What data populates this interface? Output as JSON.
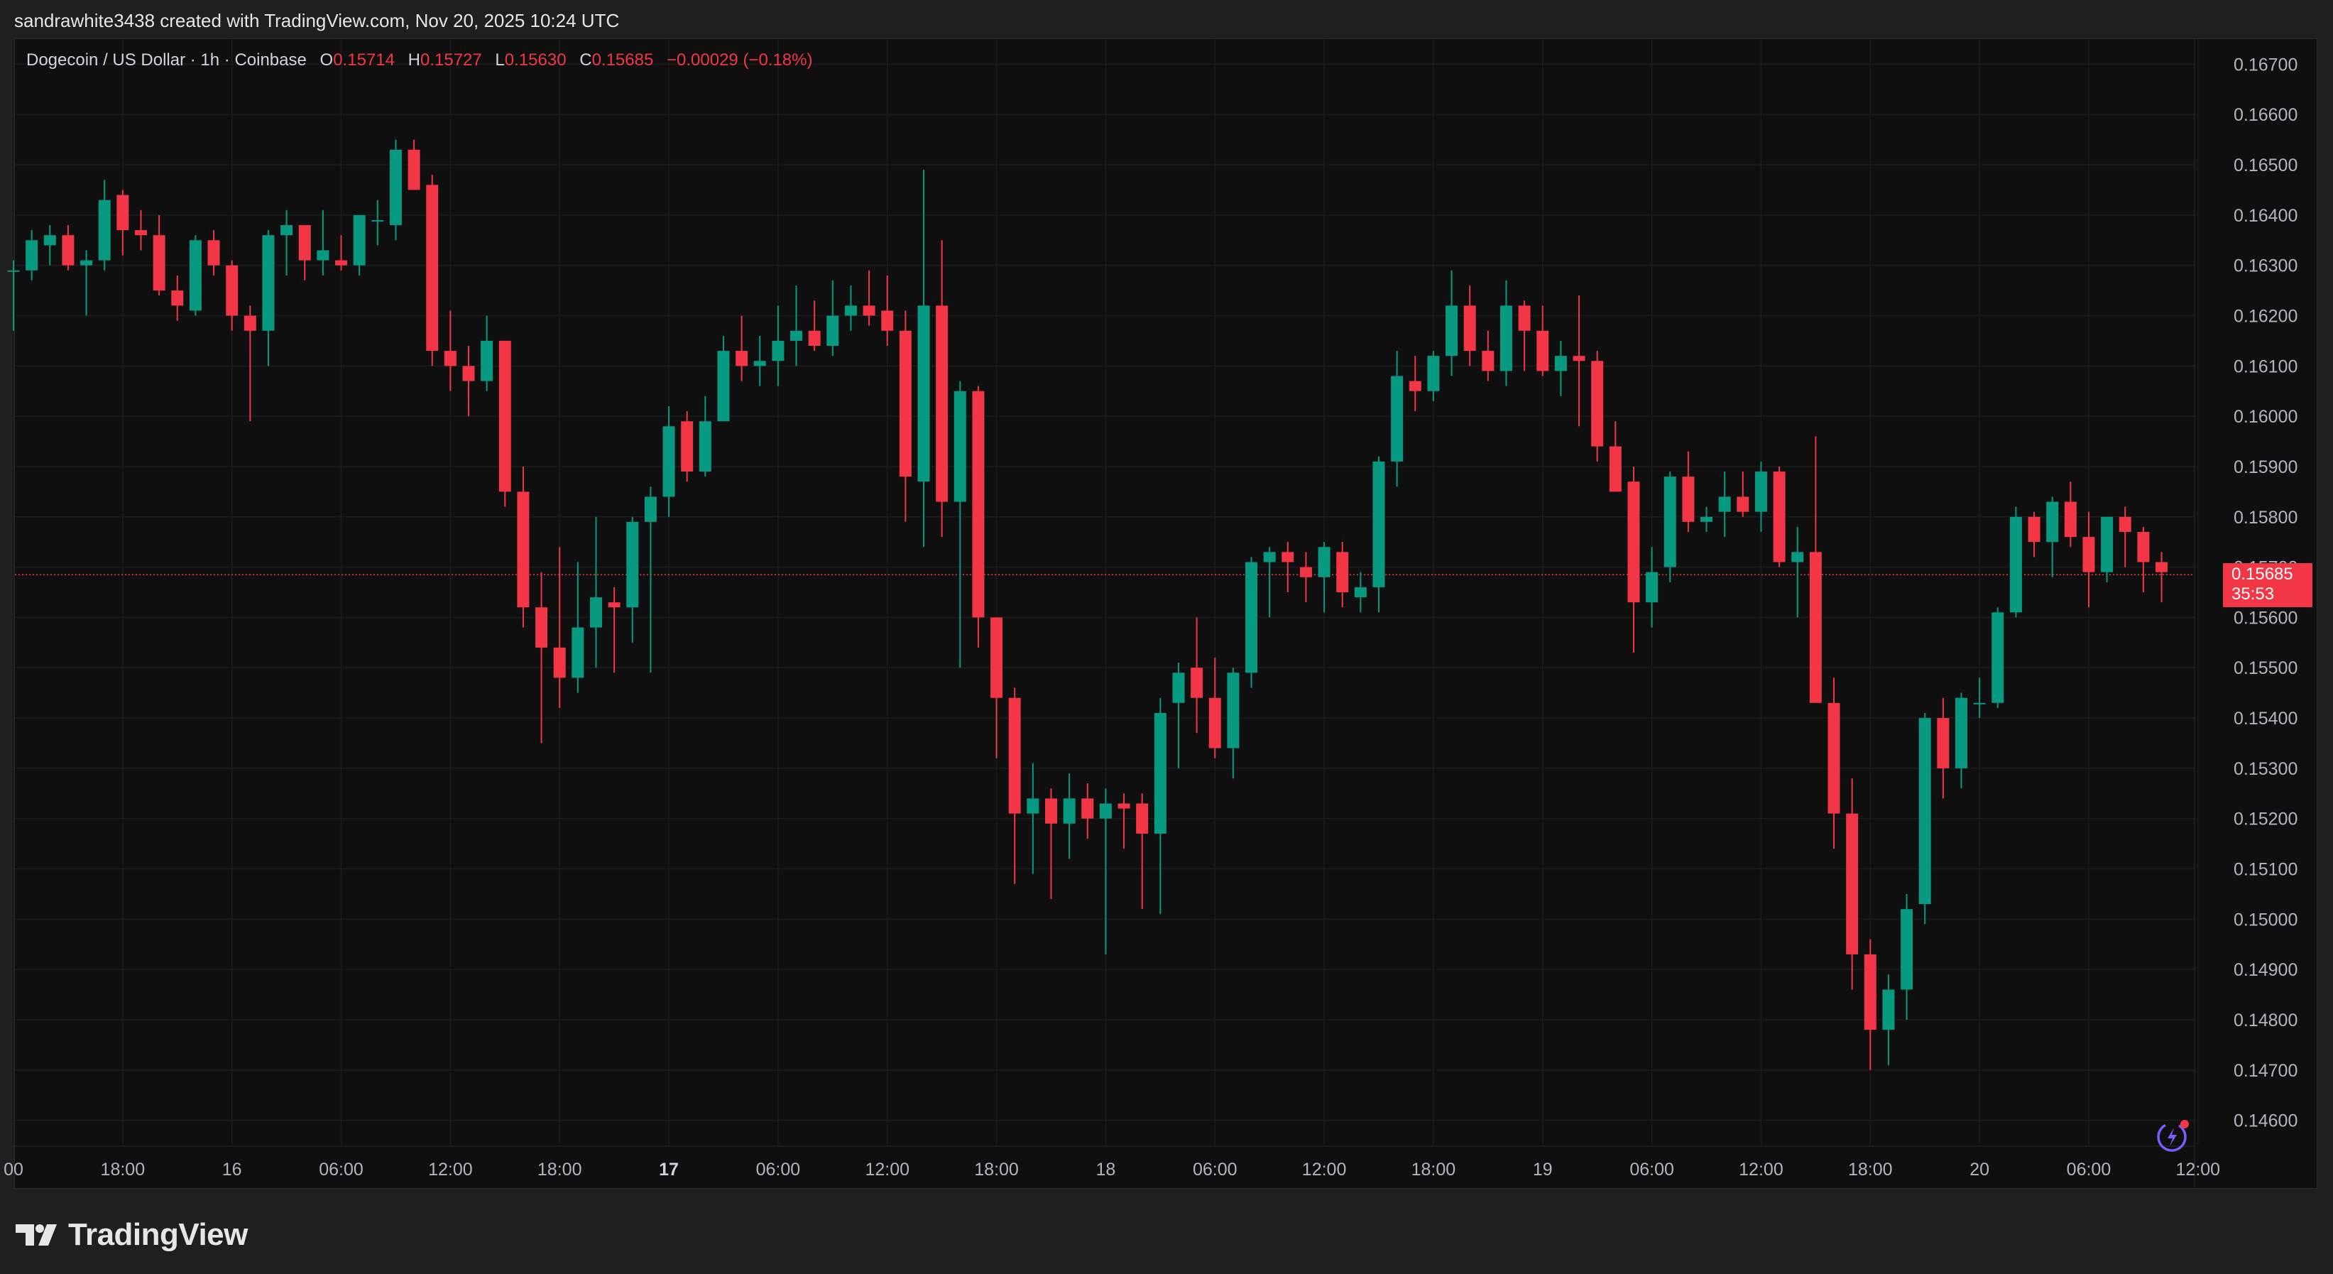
{
  "attribution": "sandrawhite3438 created with TradingView.com, Nov 20, 2025 10:24 UTC",
  "legend": {
    "symbol": "Dogecoin / US Dollar · 1h · Coinbase",
    "o_label": "O",
    "o_value": "0.15714",
    "h_label": "H",
    "h_value": "0.15727",
    "l_label": "L",
    "l_value": "0.15630",
    "c_label": "C",
    "c_value": "0.15685",
    "change": "−0.00029 (−0.18%)"
  },
  "last_price_label": "0.15685",
  "countdown": "35:53",
  "brand": "TradingView",
  "icons": {
    "brand_logo": "tradingview-logo-icon",
    "assistant": "sparkle-assistant-icon"
  },
  "colors": {
    "up": "#089981",
    "down": "#f23645",
    "background": "#0f0f0f",
    "grid": "#1c1c1c"
  },
  "chart_data": {
    "type": "candlestick",
    "interval": "1h",
    "ylim": [
      0.1455,
      0.1675
    ],
    "grid": true,
    "y_ticks": [
      "0.16700",
      "0.16600",
      "0.16500",
      "0.16400",
      "0.16300",
      "0.16200",
      "0.16100",
      "0.16000",
      "0.15900",
      "0.15800",
      "0.15700",
      "0.15600",
      "0.15500",
      "0.15400",
      "0.15300",
      "0.15200",
      "0.15100",
      "0.15000",
      "0.14900",
      "0.14800",
      "0.14700",
      "0.14600"
    ],
    "x_ticks": [
      {
        "label": "00",
        "index": 0,
        "bold": false
      },
      {
        "label": "18:00",
        "index": 6,
        "bold": false
      },
      {
        "label": "16",
        "index": 12,
        "bold": false
      },
      {
        "label": "06:00",
        "index": 18,
        "bold": false
      },
      {
        "label": "12:00",
        "index": 24,
        "bold": false
      },
      {
        "label": "18:00",
        "index": 30,
        "bold": false
      },
      {
        "label": "17",
        "index": 36,
        "bold": true
      },
      {
        "label": "06:00",
        "index": 42,
        "bold": false
      },
      {
        "label": "12:00",
        "index": 48,
        "bold": false
      },
      {
        "label": "18:00",
        "index": 54,
        "bold": false
      },
      {
        "label": "18",
        "index": 60,
        "bold": false
      },
      {
        "label": "06:00",
        "index": 66,
        "bold": false
      },
      {
        "label": "12:00",
        "index": 72,
        "bold": false
      },
      {
        "label": "18:00",
        "index": 78,
        "bold": false
      },
      {
        "label": "19",
        "index": 84,
        "bold": false
      },
      {
        "label": "06:00",
        "index": 90,
        "bold": false
      },
      {
        "label": "12:00",
        "index": 96,
        "bold": false
      },
      {
        "label": "18:00",
        "index": 102,
        "bold": false
      },
      {
        "label": "20",
        "index": 108,
        "bold": false
      },
      {
        "label": "06:00",
        "index": 114,
        "bold": false
      },
      {
        "label": "12:00",
        "index": 120,
        "bold": false
      }
    ],
    "last_price": 0.15685,
    "candles": [
      {
        "o": 0.1629,
        "h": 0.1631,
        "l": 0.1617,
        "c": 0.1629
      },
      {
        "o": 0.1629,
        "h": 0.1637,
        "l": 0.1627,
        "c": 0.1635
      },
      {
        "o": 0.1634,
        "h": 0.1638,
        "l": 0.163,
        "c": 0.1636
      },
      {
        "o": 0.1636,
        "h": 0.1638,
        "l": 0.1629,
        "c": 0.163
      },
      {
        "o": 0.163,
        "h": 0.1633,
        "l": 0.162,
        "c": 0.1631
      },
      {
        "o": 0.1631,
        "h": 0.1647,
        "l": 0.1629,
        "c": 0.1643
      },
      {
        "o": 0.1644,
        "h": 0.1645,
        "l": 0.1632,
        "c": 0.1637
      },
      {
        "o": 0.1637,
        "h": 0.1641,
        "l": 0.1633,
        "c": 0.1636
      },
      {
        "o": 0.1636,
        "h": 0.164,
        "l": 0.1624,
        "c": 0.1625
      },
      {
        "o": 0.1625,
        "h": 0.1628,
        "l": 0.1619,
        "c": 0.1622
      },
      {
        "o": 0.1621,
        "h": 0.1636,
        "l": 0.162,
        "c": 0.1635
      },
      {
        "o": 0.1635,
        "h": 0.1637,
        "l": 0.1628,
        "c": 0.163
      },
      {
        "o": 0.163,
        "h": 0.1631,
        "l": 0.1617,
        "c": 0.162
      },
      {
        "o": 0.162,
        "h": 0.1622,
        "l": 0.1599,
        "c": 0.1617
      },
      {
        "o": 0.1617,
        "h": 0.1637,
        "l": 0.161,
        "c": 0.1636
      },
      {
        "o": 0.1636,
        "h": 0.1641,
        "l": 0.1628,
        "c": 0.1638
      },
      {
        "o": 0.1638,
        "h": 0.1638,
        "l": 0.1627,
        "c": 0.1631
      },
      {
        "o": 0.1631,
        "h": 0.1641,
        "l": 0.1628,
        "c": 0.1633
      },
      {
        "o": 0.1631,
        "h": 0.1636,
        "l": 0.1629,
        "c": 0.163
      },
      {
        "o": 0.163,
        "h": 0.164,
        "l": 0.1628,
        "c": 0.164
      },
      {
        "o": 0.1639,
        "h": 0.1643,
        "l": 0.1634,
        "c": 0.1639
      },
      {
        "o": 0.1638,
        "h": 0.1655,
        "l": 0.1635,
        "c": 0.1653
      },
      {
        "o": 0.1653,
        "h": 0.1655,
        "l": 0.1645,
        "c": 0.1645
      },
      {
        "o": 0.1646,
        "h": 0.1648,
        "l": 0.161,
        "c": 0.1613
      },
      {
        "o": 0.1613,
        "h": 0.1621,
        "l": 0.1605,
        "c": 0.161
      },
      {
        "o": 0.161,
        "h": 0.1614,
        "l": 0.16,
        "c": 0.1607
      },
      {
        "o": 0.1607,
        "h": 0.162,
        "l": 0.1605,
        "c": 0.1615
      },
      {
        "o": 0.1615,
        "h": 0.1615,
        "l": 0.1582,
        "c": 0.1585
      },
      {
        "o": 0.1585,
        "h": 0.159,
        "l": 0.1558,
        "c": 0.1562
      },
      {
        "o": 0.1562,
        "h": 0.1569,
        "l": 0.1535,
        "c": 0.1554
      },
      {
        "o": 0.1554,
        "h": 0.1574,
        "l": 0.1542,
        "c": 0.1548
      },
      {
        "o": 0.1548,
        "h": 0.1571,
        "l": 0.1545,
        "c": 0.1558
      },
      {
        "o": 0.1558,
        "h": 0.158,
        "l": 0.155,
        "c": 0.1564
      },
      {
        "o": 0.1563,
        "h": 0.1566,
        "l": 0.1549,
        "c": 0.1562
      },
      {
        "o": 0.1562,
        "h": 0.158,
        "l": 0.1555,
        "c": 0.1579
      },
      {
        "o": 0.1579,
        "h": 0.1586,
        "l": 0.1549,
        "c": 0.1584
      },
      {
        "o": 0.1584,
        "h": 0.1602,
        "l": 0.158,
        "c": 0.1598
      },
      {
        "o": 0.1599,
        "h": 0.1601,
        "l": 0.1587,
        "c": 0.1589
      },
      {
        "o": 0.1589,
        "h": 0.1604,
        "l": 0.1588,
        "c": 0.1599
      },
      {
        "o": 0.1599,
        "h": 0.1616,
        "l": 0.1599,
        "c": 0.1613
      },
      {
        "o": 0.1613,
        "h": 0.162,
        "l": 0.1607,
        "c": 0.161
      },
      {
        "o": 0.161,
        "h": 0.1616,
        "l": 0.1606,
        "c": 0.1611
      },
      {
        "o": 0.1611,
        "h": 0.1622,
        "l": 0.1606,
        "c": 0.1615
      },
      {
        "o": 0.1615,
        "h": 0.1626,
        "l": 0.161,
        "c": 0.1617
      },
      {
        "o": 0.1617,
        "h": 0.1623,
        "l": 0.1613,
        "c": 0.1614
      },
      {
        "o": 0.1614,
        "h": 0.1627,
        "l": 0.1612,
        "c": 0.162
      },
      {
        "o": 0.162,
        "h": 0.1626,
        "l": 0.1617,
        "c": 0.1622
      },
      {
        "o": 0.1622,
        "h": 0.1629,
        "l": 0.1618,
        "c": 0.162
      },
      {
        "o": 0.1621,
        "h": 0.1628,
        "l": 0.1614,
        "c": 0.1617
      },
      {
        "o": 0.1617,
        "h": 0.1621,
        "l": 0.1579,
        "c": 0.1588
      },
      {
        "o": 0.1587,
        "h": 0.1649,
        "l": 0.1574,
        "c": 0.1622
      },
      {
        "o": 0.1622,
        "h": 0.1635,
        "l": 0.1576,
        "c": 0.1583
      },
      {
        "o": 0.1583,
        "h": 0.1607,
        "l": 0.155,
        "c": 0.1605
      },
      {
        "o": 0.1605,
        "h": 0.1606,
        "l": 0.1554,
        "c": 0.156
      },
      {
        "o": 0.156,
        "h": 0.156,
        "l": 0.1532,
        "c": 0.1544
      },
      {
        "o": 0.1544,
        "h": 0.1546,
        "l": 0.1507,
        "c": 0.1521
      },
      {
        "o": 0.1521,
        "h": 0.1531,
        "l": 0.1509,
        "c": 0.1524
      },
      {
        "o": 0.1524,
        "h": 0.1526,
        "l": 0.1504,
        "c": 0.1519
      },
      {
        "o": 0.1519,
        "h": 0.1529,
        "l": 0.1512,
        "c": 0.1524
      },
      {
        "o": 0.1524,
        "h": 0.1527,
        "l": 0.1516,
        "c": 0.152
      },
      {
        "o": 0.152,
        "h": 0.1526,
        "l": 0.1493,
        "c": 0.1523
      },
      {
        "o": 0.1523,
        "h": 0.1525,
        "l": 0.1514,
        "c": 0.1522
      },
      {
        "o": 0.1523,
        "h": 0.1525,
        "l": 0.1502,
        "c": 0.1517
      },
      {
        "o": 0.1517,
        "h": 0.1544,
        "l": 0.1501,
        "c": 0.1541
      },
      {
        "o": 0.1543,
        "h": 0.1551,
        "l": 0.153,
        "c": 0.1549
      },
      {
        "o": 0.155,
        "h": 0.156,
        "l": 0.1537,
        "c": 0.1544
      },
      {
        "o": 0.1544,
        "h": 0.1552,
        "l": 0.1532,
        "c": 0.1534
      },
      {
        "o": 0.1534,
        "h": 0.155,
        "l": 0.1528,
        "c": 0.1549
      },
      {
        "o": 0.1549,
        "h": 0.1572,
        "l": 0.1546,
        "c": 0.1571
      },
      {
        "o": 0.1571,
        "h": 0.1574,
        "l": 0.156,
        "c": 0.1573
      },
      {
        "o": 0.1573,
        "h": 0.1575,
        "l": 0.1565,
        "c": 0.1571
      },
      {
        "o": 0.157,
        "h": 0.1573,
        "l": 0.1563,
        "c": 0.1568
      },
      {
        "o": 0.1568,
        "h": 0.1575,
        "l": 0.1561,
        "c": 0.1574
      },
      {
        "o": 0.1573,
        "h": 0.1575,
        "l": 0.1562,
        "c": 0.1565
      },
      {
        "o": 0.1564,
        "h": 0.1569,
        "l": 0.1561,
        "c": 0.1566
      },
      {
        "o": 0.1566,
        "h": 0.1592,
        "l": 0.1561,
        "c": 0.1591
      },
      {
        "o": 0.1591,
        "h": 0.1613,
        "l": 0.1586,
        "c": 0.1608
      },
      {
        "o": 0.1607,
        "h": 0.1612,
        "l": 0.1601,
        "c": 0.1605
      },
      {
        "o": 0.1605,
        "h": 0.1613,
        "l": 0.1603,
        "c": 0.1612
      },
      {
        "o": 0.1612,
        "h": 0.1629,
        "l": 0.1608,
        "c": 0.1622
      },
      {
        "o": 0.1622,
        "h": 0.1626,
        "l": 0.161,
        "c": 0.1613
      },
      {
        "o": 0.1613,
        "h": 0.1617,
        "l": 0.1607,
        "c": 0.1609
      },
      {
        "o": 0.1609,
        "h": 0.1627,
        "l": 0.1606,
        "c": 0.1622
      },
      {
        "o": 0.1622,
        "h": 0.1623,
        "l": 0.1609,
        "c": 0.1617
      },
      {
        "o": 0.1617,
        "h": 0.1622,
        "l": 0.1608,
        "c": 0.1609
      },
      {
        "o": 0.1609,
        "h": 0.1615,
        "l": 0.1604,
        "c": 0.1612
      },
      {
        "o": 0.1612,
        "h": 0.1624,
        "l": 0.1598,
        "c": 0.1611
      },
      {
        "o": 0.1611,
        "h": 0.1613,
        "l": 0.1591,
        "c": 0.1594
      },
      {
        "o": 0.1594,
        "h": 0.1599,
        "l": 0.1585,
        "c": 0.1585
      },
      {
        "o": 0.1587,
        "h": 0.159,
        "l": 0.1553,
        "c": 0.1563
      },
      {
        "o": 0.1563,
        "h": 0.1574,
        "l": 0.1558,
        "c": 0.1569
      },
      {
        "o": 0.157,
        "h": 0.1589,
        "l": 0.1567,
        "c": 0.1588
      },
      {
        "o": 0.1588,
        "h": 0.1593,
        "l": 0.1577,
        "c": 0.1579
      },
      {
        "o": 0.1579,
        "h": 0.1582,
        "l": 0.1577,
        "c": 0.158
      },
      {
        "o": 0.1581,
        "h": 0.1589,
        "l": 0.1576,
        "c": 0.1584
      },
      {
        "o": 0.1584,
        "h": 0.1589,
        "l": 0.158,
        "c": 0.1581
      },
      {
        "o": 0.1581,
        "h": 0.1591,
        "l": 0.1577,
        "c": 0.1589
      },
      {
        "o": 0.1589,
        "h": 0.159,
        "l": 0.157,
        "c": 0.1571
      },
      {
        "o": 0.1571,
        "h": 0.1578,
        "l": 0.156,
        "c": 0.1573
      },
      {
        "o": 0.1573,
        "h": 0.1596,
        "l": 0.1543,
        "c": 0.1543
      },
      {
        "o": 0.1543,
        "h": 0.1548,
        "l": 0.1514,
        "c": 0.1521
      },
      {
        "o": 0.1521,
        "h": 0.1528,
        "l": 0.1486,
        "c": 0.1493
      },
      {
        "o": 0.1493,
        "h": 0.1496,
        "l": 0.147,
        "c": 0.1478
      },
      {
        "o": 0.1478,
        "h": 0.1489,
        "l": 0.1471,
        "c": 0.1486
      },
      {
        "o": 0.1486,
        "h": 0.1505,
        "l": 0.148,
        "c": 0.1502
      },
      {
        "o": 0.1503,
        "h": 0.1541,
        "l": 0.1499,
        "c": 0.154
      },
      {
        "o": 0.154,
        "h": 0.1544,
        "l": 0.1524,
        "c": 0.153
      },
      {
        "o": 0.153,
        "h": 0.1545,
        "l": 0.1526,
        "c": 0.1544
      },
      {
        "o": 0.1543,
        "h": 0.1548,
        "l": 0.154,
        "c": 0.1543
      },
      {
        "o": 0.1543,
        "h": 0.1562,
        "l": 0.1542,
        "c": 0.1561
      },
      {
        "o": 0.1561,
        "h": 0.1582,
        "l": 0.156,
        "c": 0.158
      },
      {
        "o": 0.158,
        "h": 0.1581,
        "l": 0.1572,
        "c": 0.1575
      },
      {
        "o": 0.1575,
        "h": 0.1584,
        "l": 0.1568,
        "c": 0.1583
      },
      {
        "o": 0.1583,
        "h": 0.1587,
        "l": 0.1574,
        "c": 0.1576
      },
      {
        "o": 0.1576,
        "h": 0.1581,
        "l": 0.1562,
        "c": 0.1569
      },
      {
        "o": 0.1569,
        "h": 0.158,
        "l": 0.1567,
        "c": 0.158
      },
      {
        "o": 0.158,
        "h": 0.1582,
        "l": 0.157,
        "c": 0.1577
      },
      {
        "o": 0.1577,
        "h": 0.1578,
        "l": 0.1565,
        "c": 0.1571
      },
      {
        "o": 0.1571,
        "h": 0.1573,
        "l": 0.1563,
        "c": 0.1569
      }
    ]
  }
}
